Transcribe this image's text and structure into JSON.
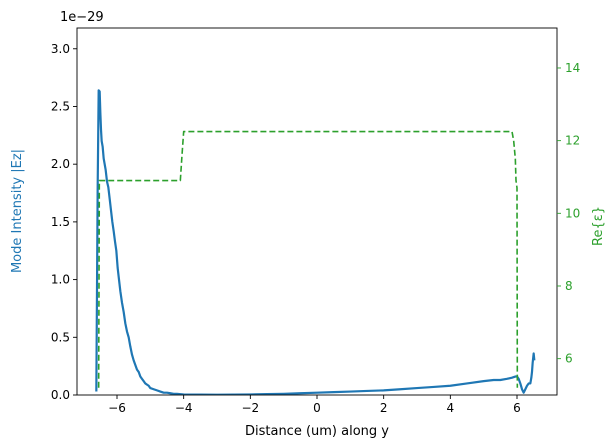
{
  "chart_data": {
    "type": "line",
    "xlabel": "Distance (um) along y",
    "x_ticks": [
      -6,
      -4,
      -2,
      0,
      2,
      4,
      6
    ],
    "xlim": [
      -7.2,
      7.2
    ],
    "left_axis": {
      "label": "Mode Intensity |Ez|",
      "offset_text": "1e−29",
      "ylim": [
        0,
        3.18
      ],
      "ticks": [
        0.0,
        0.5,
        1.0,
        1.5,
        2.0,
        2.5,
        3.0
      ],
      "tick_labels": [
        "0.0",
        "0.5",
        "1.0",
        "1.5",
        "2.0",
        "2.5",
        "3.0"
      ],
      "color": "#1f77b4"
    },
    "right_axis": {
      "label": "Re{ε}",
      "ylim": [
        5.0,
        15.1
      ],
      "ticks": [
        6,
        8,
        10,
        12,
        14
      ],
      "color": "#2ca02c"
    },
    "series": [
      {
        "axis": "left",
        "style": "solid",
        "color": "#1f77b4",
        "x": [
          -6.62,
          -6.58,
          -6.55,
          -6.52,
          -6.5,
          -6.48,
          -6.46,
          -6.43,
          -6.4,
          -6.37,
          -6.34,
          -6.3,
          -6.26,
          -6.22,
          -6.18,
          -6.14,
          -6.1,
          -6.06,
          -6.02,
          -5.98,
          -5.94,
          -5.9,
          -5.85,
          -5.8,
          -5.75,
          -5.7,
          -5.65,
          -5.6,
          -5.55,
          -5.5,
          -5.45,
          -5.4,
          -5.35,
          -5.3,
          -5.25,
          -5.2,
          -5.15,
          -5.1,
          -5.05,
          -5.0,
          -4.9,
          -4.8,
          -4.7,
          -4.6,
          -4.5,
          -4.4,
          -4.3,
          -4.2,
          -4.0,
          -3.8,
          -3.5,
          -3.0,
          -2.5,
          -2.0,
          -1.5,
          -1.0,
          -0.5,
          0.0,
          0.5,
          1.0,
          1.5,
          2.0,
          2.5,
          3.0,
          3.5,
          4.0,
          4.5,
          5.0,
          5.3,
          5.5,
          5.7,
          5.85,
          5.95,
          6.0,
          6.05,
          6.1,
          6.15,
          6.2,
          6.25,
          6.3,
          6.35,
          6.4,
          6.43,
          6.45,
          6.47,
          6.5,
          6.52
        ],
        "y": [
          0.03,
          1.8,
          2.64,
          2.63,
          2.45,
          2.3,
          2.2,
          2.15,
          2.05,
          2.0,
          1.95,
          1.85,
          1.8,
          1.7,
          1.6,
          1.5,
          1.42,
          1.33,
          1.25,
          1.1,
          1.0,
          0.9,
          0.8,
          0.72,
          0.62,
          0.55,
          0.5,
          0.42,
          0.35,
          0.3,
          0.26,
          0.22,
          0.2,
          0.16,
          0.14,
          0.12,
          0.1,
          0.09,
          0.08,
          0.06,
          0.05,
          0.04,
          0.03,
          0.02,
          0.02,
          0.015,
          0.01,
          0.01,
          0.005,
          0.003,
          0.003,
          0.002,
          0.003,
          0.005,
          0.008,
          0.01,
          0.015,
          0.02,
          0.025,
          0.03,
          0.035,
          0.04,
          0.05,
          0.06,
          0.07,
          0.08,
          0.1,
          0.12,
          0.13,
          0.13,
          0.14,
          0.15,
          0.16,
          0.16,
          0.14,
          0.1,
          0.05,
          0.02,
          0.05,
          0.08,
          0.1,
          0.1,
          0.15,
          0.2,
          0.28,
          0.36,
          0.3
        ]
      },
      {
        "axis": "right",
        "style": "dashed",
        "color": "#2ca02c",
        "x": [
          -6.55,
          -6.53,
          -6.5,
          -4.1,
          -4.05,
          -4.0,
          5.85,
          5.9,
          5.95,
          5.97,
          6.0,
          6.01
        ],
        "y": [
          5.2,
          10.9,
          10.9,
          10.9,
          11.6,
          12.25,
          12.25,
          12.0,
          11.5,
          10.9,
          10.7,
          5.2
        ]
      }
    ]
  }
}
